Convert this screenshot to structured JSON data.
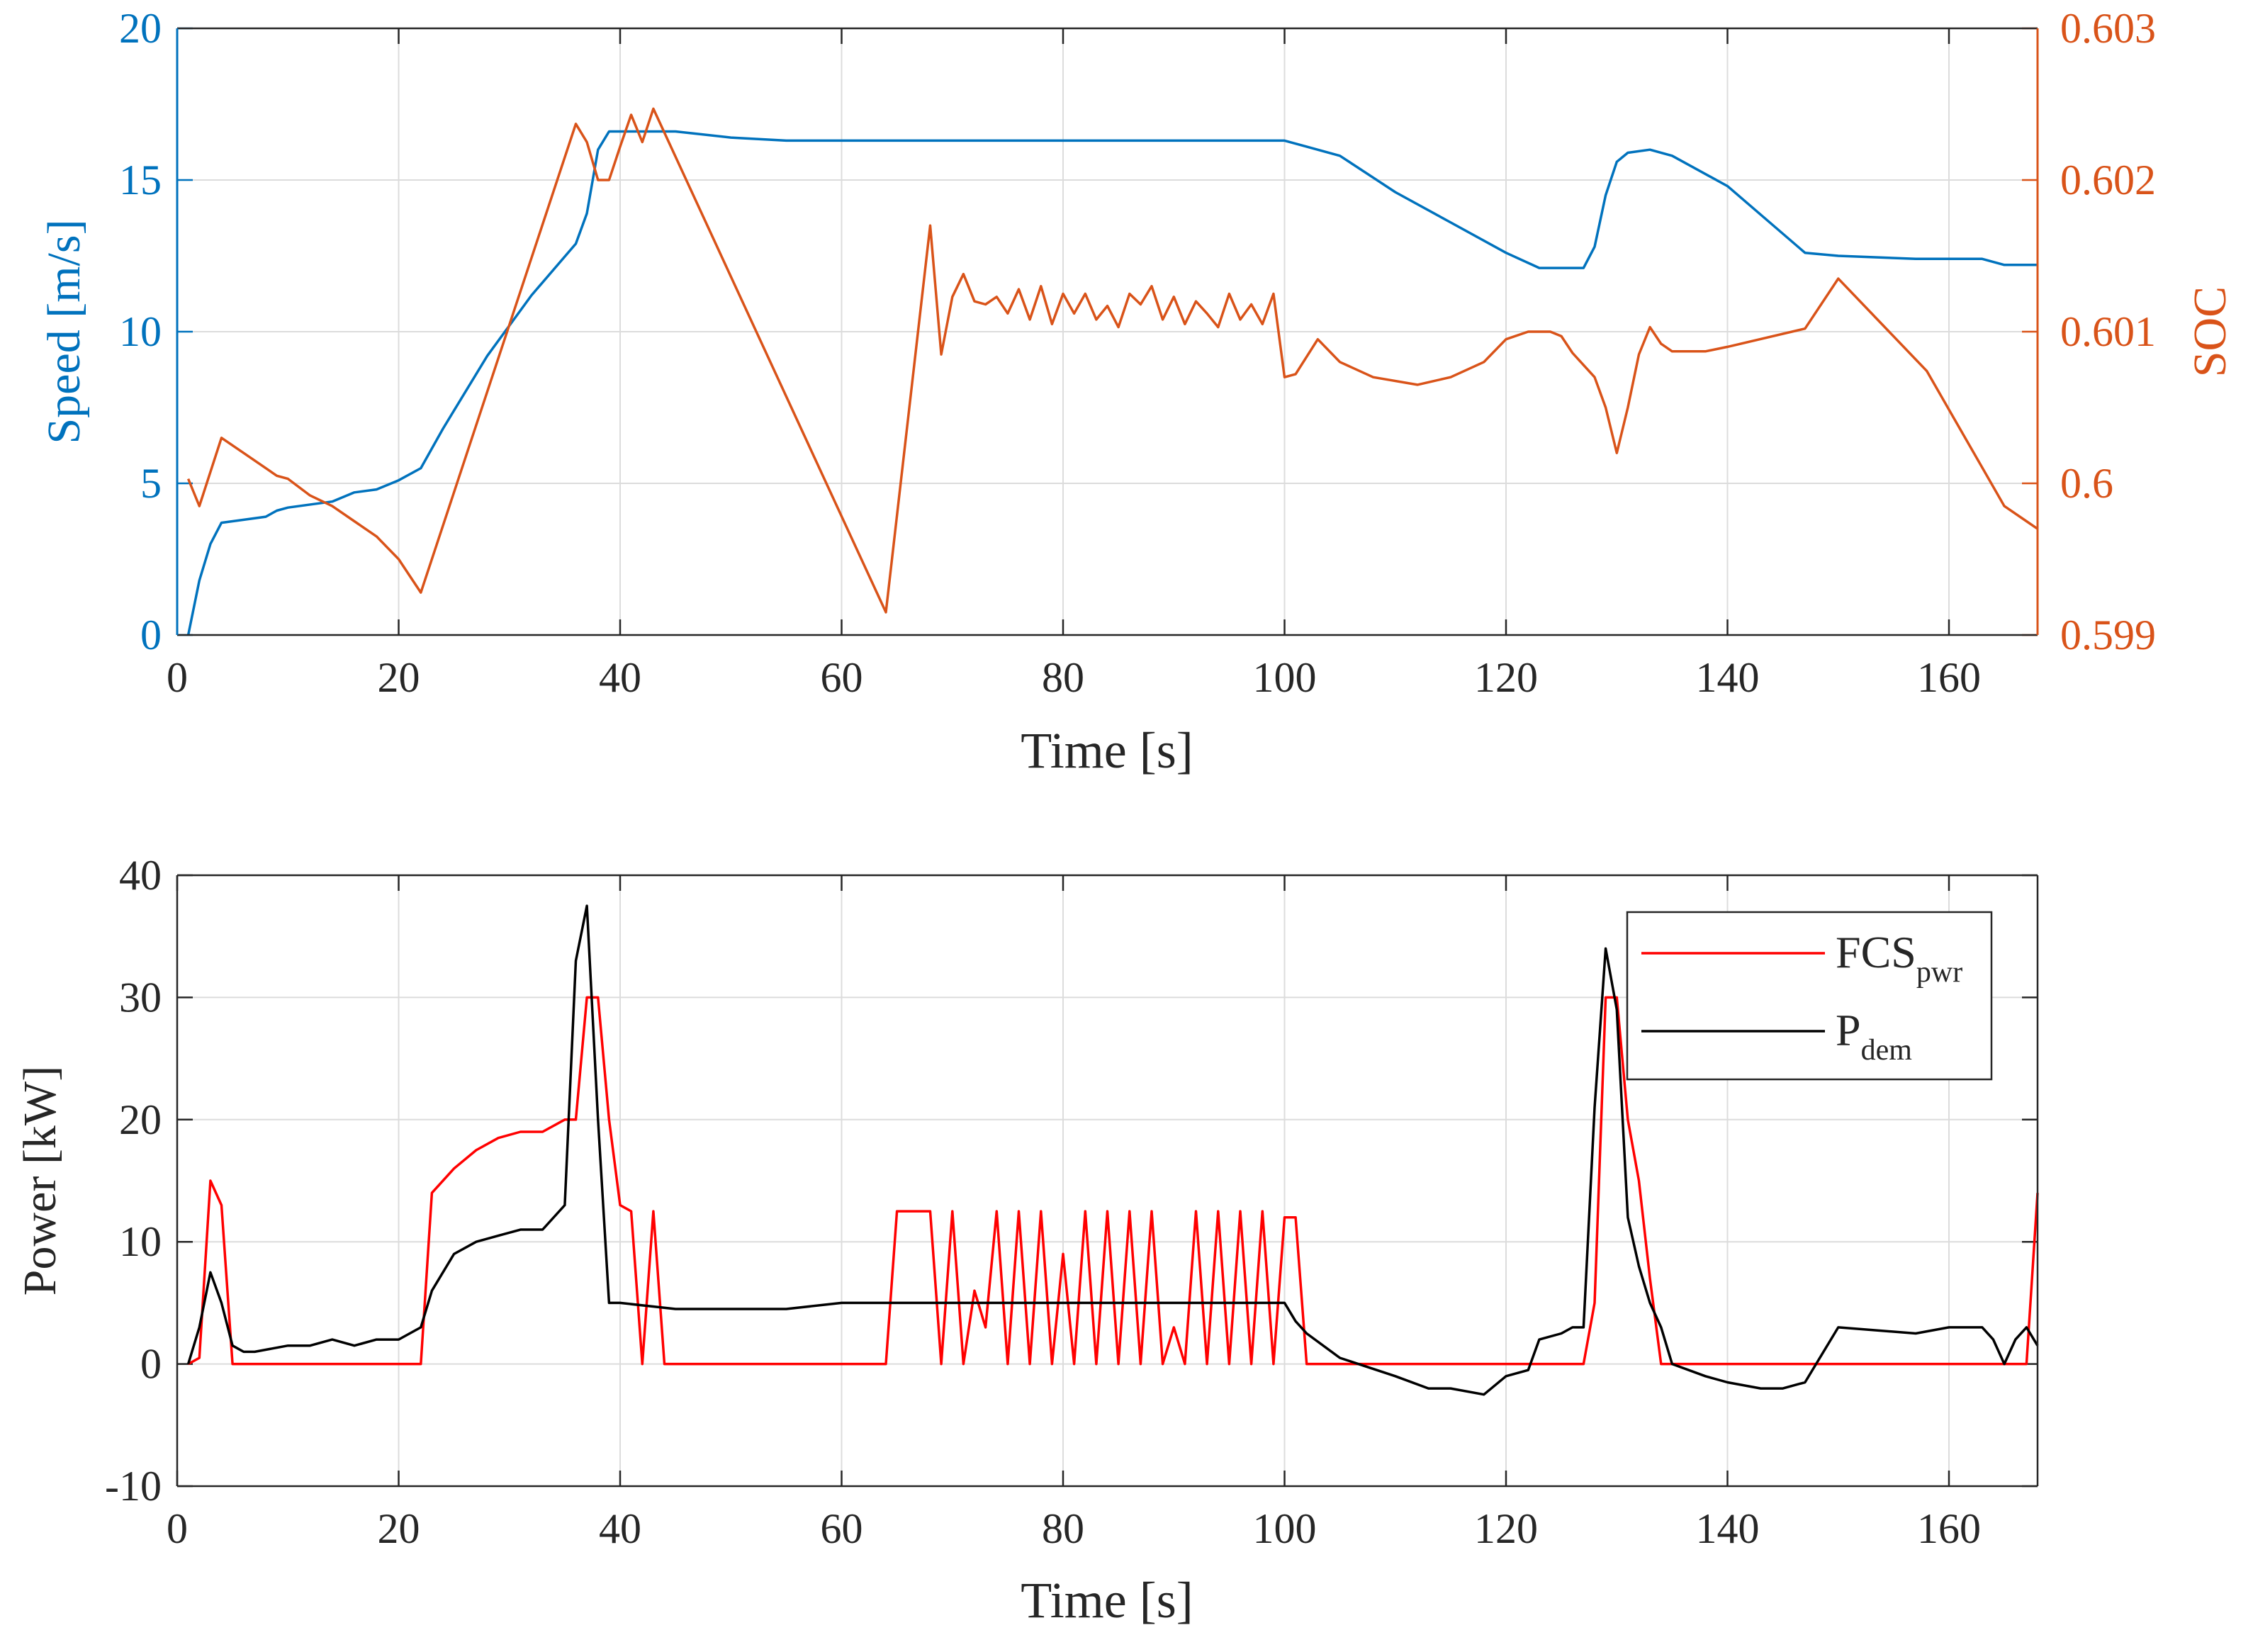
{
  "colors": {
    "speed": "#0072BD",
    "soc": "#D95319",
    "fcs": "#FF0000",
    "pdem": "#000000",
    "grid": "#DCDCDC",
    "axis": "#262626"
  },
  "chart_data": [
    {
      "type": "line",
      "id": "top",
      "xlabel": "Time [s]",
      "ylabel": "Speed [m/s]",
      "ylabel_right": "SOC",
      "xlim": [
        0,
        168
      ],
      "ylim": [
        0,
        20
      ],
      "ylim_right": [
        0.599,
        0.603
      ],
      "xticks": [
        0,
        20,
        40,
        60,
        80,
        100,
        120,
        140,
        160
      ],
      "yticks": [
        0,
        5,
        10,
        15,
        20
      ],
      "yticks_right": [
        "0.599",
        "0.6",
        "0.601",
        "0.602",
        "0.603"
      ],
      "grid": true,
      "series": [
        {
          "name": "Speed",
          "axis": "left",
          "color_key": "speed",
          "x": [
            1,
            2,
            3,
            4,
            6,
            8,
            9,
            10,
            14,
            16,
            18,
            20,
            22,
            24,
            28,
            32,
            36,
            37,
            38,
            39,
            40,
            45,
            50,
            55,
            60,
            70,
            80,
            90,
            100,
            102,
            105,
            110,
            115,
            120,
            123,
            127,
            128,
            129,
            130,
            131,
            133,
            135,
            140,
            147,
            150,
            157,
            163,
            165,
            168
          ],
          "values": [
            0.0,
            1.8,
            3.0,
            3.7,
            3.8,
            3.9,
            4.1,
            4.2,
            4.4,
            4.7,
            4.8,
            5.1,
            5.5,
            6.8,
            9.2,
            11.2,
            12.9,
            13.9,
            16.0,
            16.6,
            16.6,
            16.6,
            16.4,
            16.3,
            16.3,
            16.3,
            16.3,
            16.3,
            16.3,
            16.1,
            15.8,
            14.6,
            13.6,
            12.6,
            12.1,
            12.1,
            12.8,
            14.5,
            15.6,
            15.9,
            16.0,
            15.8,
            14.8,
            12.6,
            12.5,
            12.4,
            12.4,
            12.2,
            12.2
          ]
        },
        {
          "name": "SOC",
          "axis": "right",
          "color_key": "soc",
          "x": [
            1,
            2,
            4,
            6,
            8,
            9,
            10,
            12,
            14,
            16,
            18,
            20,
            22,
            36,
            37,
            38,
            39,
            40,
            41,
            42,
            43,
            64,
            68,
            69,
            70,
            71,
            72,
            73,
            74,
            75,
            76,
            77,
            78,
            79,
            80,
            81,
            82,
            83,
            84,
            85,
            86,
            87,
            88,
            89,
            90,
            91,
            92,
            93,
            94,
            95,
            96,
            97,
            98,
            99,
            100,
            101,
            103,
            105,
            108,
            112,
            115,
            118,
            120,
            122,
            124,
            125,
            126,
            128,
            129,
            130,
            131,
            132,
            133,
            134,
            135,
            138,
            140,
            147,
            150,
            158,
            165,
            167,
            168
          ],
          "values": [
            0.60003,
            0.59985,
            0.6003,
            0.6002,
            0.6001,
            0.60005,
            0.60003,
            0.59992,
            0.59985,
            0.59975,
            0.59965,
            0.5995,
            0.59928,
            0.60237,
            0.60225,
            0.602,
            0.602,
            0.60222,
            0.60243,
            0.60225,
            0.60247,
            0.59915,
            0.6017,
            0.60085,
            0.60123,
            0.60138,
            0.6012,
            0.60118,
            0.60123,
            0.60112,
            0.60128,
            0.60108,
            0.6013,
            0.60105,
            0.60125,
            0.60112,
            0.60125,
            0.60108,
            0.60117,
            0.60103,
            0.60125,
            0.60118,
            0.6013,
            0.60108,
            0.60123,
            0.60105,
            0.6012,
            0.60112,
            0.60103,
            0.60125,
            0.60108,
            0.60118,
            0.60105,
            0.60125,
            0.6007,
            0.60072,
            0.60095,
            0.6008,
            0.6007,
            0.60065,
            0.6007,
            0.6008,
            0.60095,
            0.601,
            0.601,
            0.60097,
            0.60086,
            0.6007,
            0.6005,
            0.6002,
            0.6005,
            0.60085,
            0.60103,
            0.60092,
            0.60087,
            0.60087,
            0.6009,
            0.60102,
            0.60135,
            0.60074,
            0.59985,
            0.59975,
            0.5997
          ]
        }
      ]
    },
    {
      "type": "line",
      "id": "bottom",
      "xlabel": "Time [s]",
      "ylabel": "Power [kW]",
      "xlim": [
        0,
        168
      ],
      "ylim": [
        -10,
        40
      ],
      "xticks": [
        0,
        20,
        40,
        60,
        80,
        100,
        120,
        140,
        160
      ],
      "yticks": [
        -10,
        0,
        10,
        20,
        30,
        40
      ],
      "grid": true,
      "legend": {
        "placement": "top-right",
        "entries": [
          {
            "main": "FCS",
            "sub": "pwr",
            "color_key": "fcs"
          },
          {
            "main": "P",
            "sub": "dem",
            "color_key": "pdem"
          }
        ]
      },
      "series": [
        {
          "name": "FCSpwr",
          "color_key": "fcs",
          "x": [
            1,
            2,
            3,
            4,
            5,
            6,
            7,
            10,
            15,
            20,
            22,
            23,
            25,
            27,
            29,
            31,
            33,
            35,
            36,
            37,
            38,
            39,
            40,
            41,
            42,
            43,
            44,
            45,
            55,
            64,
            65,
            67,
            68,
            69,
            70,
            71,
            72,
            73,
            74,
            75,
            76,
            77,
            78,
            79,
            80,
            81,
            82,
            83,
            84,
            85,
            86,
            87,
            88,
            89,
            90,
            91,
            92,
            93,
            94,
            95,
            96,
            97,
            98,
            99,
            100,
            101,
            102,
            105,
            110,
            120,
            126,
            127,
            128,
            129,
            130,
            131,
            132,
            133,
            134,
            140,
            150,
            160,
            167,
            168
          ],
          "values": [
            0,
            0.5,
            15,
            13,
            0,
            0,
            0,
            0,
            0,
            0,
            0,
            14,
            16,
            17.5,
            18.5,
            19,
            19,
            20,
            20,
            30,
            30,
            20,
            13,
            12.5,
            0,
            12.5,
            0,
            0,
            0,
            0,
            12.5,
            12.5,
            12.5,
            0,
            12.5,
            0,
            6,
            3,
            12.5,
            0,
            12.5,
            0,
            12.5,
            0,
            9,
            0,
            12.5,
            0,
            12.5,
            0,
            12.5,
            0,
            12.5,
            0,
            3,
            0,
            12.5,
            0,
            12.5,
            0,
            12.5,
            0,
            12.5,
            0,
            12,
            12,
            0,
            0,
            0,
            0,
            0,
            0,
            5,
            30,
            30,
            20,
            15,
            7,
            0,
            0,
            0,
            0,
            0,
            14
          ]
        },
        {
          "name": "Pdem",
          "color_key": "pdem",
          "x": [
            1,
            2,
            3,
            4,
            5,
            6,
            7,
            10,
            12,
            14,
            16,
            18,
            20,
            22,
            23,
            25,
            27,
            29,
            31,
            33,
            35,
            36,
            37,
            38,
            39,
            40,
            45,
            50,
            55,
            60,
            70,
            80,
            90,
            100,
            101,
            102,
            105,
            110,
            113,
            115,
            118,
            120,
            122,
            123,
            125,
            126,
            127,
            128,
            129,
            130,
            131,
            132,
            133,
            134,
            135,
            138,
            140,
            143,
            145,
            147,
            150,
            157,
            160,
            163,
            164,
            165,
            166,
            167,
            168
          ],
          "values": [
            0,
            3,
            7.5,
            5,
            1.5,
            1,
            1,
            1.5,
            1.5,
            2,
            1.5,
            2,
            2,
            3,
            6,
            9,
            10,
            10.5,
            11,
            11,
            13,
            33,
            37.5,
            20,
            5,
            5,
            4.5,
            4.5,
            4.5,
            5,
            5,
            5,
            5,
            5,
            3.5,
            2.5,
            0.5,
            -1,
            -2,
            -2,
            -2.5,
            -1,
            -0.5,
            2,
            2.5,
            3,
            3,
            21,
            34,
            29,
            12,
            8,
            5,
            3,
            0,
            -1,
            -1.5,
            -2,
            -2,
            -1.5,
            3,
            2.5,
            3,
            3,
            2,
            0,
            2,
            3,
            1.5
          ]
        }
      ]
    }
  ]
}
